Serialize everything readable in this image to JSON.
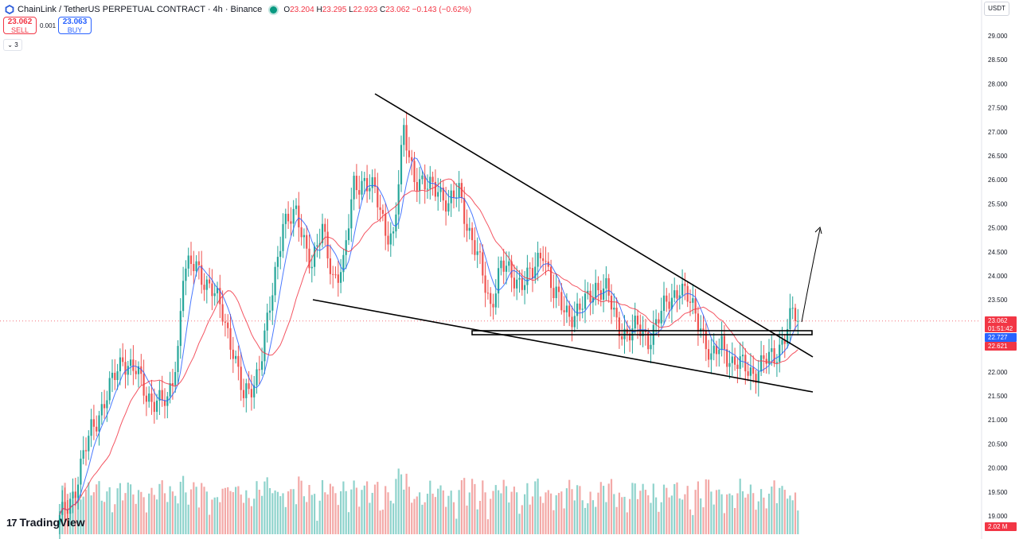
{
  "header": {
    "title": "ChainLink / TetherUS PERPETUAL CONTRACT · 4h · Binance",
    "ohlc": [
      {
        "k": "O",
        "v": "23.204"
      },
      {
        "k": "H",
        "v": "23.295"
      },
      {
        "k": "L",
        "v": "22.923"
      },
      {
        "k": "C",
        "v": "23.062"
      }
    ],
    "change": "−0.143 (−0.62%)"
  },
  "trade": {
    "sell_price": "23.062",
    "sell_label": "SELL",
    "buy_price": "23.063",
    "buy_label": "BUY",
    "spread": "0.001"
  },
  "indicators_count": "3",
  "currency": "USDT",
  "logo_text": "TradingView",
  "colors": {
    "up": "#26a69a",
    "down": "#ef5350",
    "upVol": "#8fd3cc",
    "downVol": "#f3a9a7",
    "ma_fast": "#2962ff",
    "ma_slow": "#f23645"
  },
  "price_labels": {
    "last": "23.062",
    "countdown": "01:51:42",
    "ma_fast": "22.727",
    "ma_slow": "22.621",
    "volume": "2.02 M"
  },
  "chart_data": {
    "type": "candlestick",
    "ylim": [
      18.85,
      29.3
    ],
    "y_ticks": [
      "19.000",
      "19.500",
      "20.000",
      "20.500",
      "21.000",
      "21.500",
      "22.000",
      "22.500",
      "23.000",
      "23.500",
      "24.000",
      "24.500",
      "25.000",
      "25.500",
      "26.000",
      "26.500",
      "27.000",
      "27.500",
      "28.000",
      "28.500",
      "29.000"
    ],
    "close_anchors": [
      [
        0,
        18.9
      ],
      [
        6,
        19.6
      ],
      [
        12,
        20.8
      ],
      [
        18,
        21.5
      ],
      [
        24,
        22.3
      ],
      [
        29,
        22.0
      ],
      [
        33,
        21.5
      ],
      [
        38,
        21.4
      ],
      [
        41,
        21.3
      ],
      [
        45,
        22.5
      ],
      [
        47,
        24.1
      ],
      [
        52,
        24.2
      ],
      [
        58,
        23.7
      ],
      [
        62,
        23.2
      ],
      [
        66,
        22.5
      ],
      [
        70,
        21.4
      ],
      [
        74,
        21.8
      ],
      [
        77,
        22.4
      ],
      [
        81,
        23.6
      ],
      [
        85,
        25.2
      ],
      [
        90,
        25.2
      ],
      [
        96,
        24.3
      ],
      [
        100,
        24.9
      ],
      [
        104,
        24.0
      ],
      [
        108,
        24.2
      ],
      [
        112,
        25.9
      ],
      [
        116,
        26.0
      ],
      [
        120,
        25.7
      ],
      [
        124,
        25.0
      ],
      [
        127,
        24.8
      ],
      [
        131,
        27.0
      ],
      [
        135,
        26.1
      ],
      [
        139,
        25.8
      ],
      [
        144,
        25.9
      ],
      [
        148,
        25.4
      ],
      [
        152,
        25.8
      ],
      [
        156,
        24.9
      ],
      [
        160,
        24.2
      ],
      [
        164,
        23.4
      ],
      [
        168,
        24.2
      ],
      [
        172,
        24.0
      ],
      [
        176,
        23.9
      ],
      [
        180,
        24.0
      ],
      [
        184,
        24.6
      ],
      [
        188,
        23.6
      ],
      [
        192,
        23.3
      ],
      [
        196,
        23.2
      ],
      [
        200,
        23.4
      ],
      [
        204,
        23.8
      ],
      [
        208,
        23.7
      ],
      [
        212,
        23.0
      ],
      [
        216,
        22.8
      ],
      [
        220,
        22.9
      ],
      [
        224,
        22.7
      ],
      [
        228,
        23.1
      ],
      [
        232,
        23.5
      ],
      [
        236,
        23.8
      ],
      [
        240,
        23.4
      ],
      [
        244,
        23.0
      ],
      [
        248,
        22.2
      ],
      [
        252,
        22.6
      ],
      [
        256,
        22.2
      ],
      [
        260,
        22.1
      ],
      [
        264,
        22.0
      ],
      [
        268,
        22.2
      ],
      [
        272,
        22.3
      ],
      [
        276,
        22.8
      ],
      [
        279,
        23.2
      ],
      [
        281,
        23.06
      ]
    ],
    "volume_peak_label": "2.02 M",
    "annotations": [
      "falling wedge trendline (upper)",
      "falling wedge trendline (lower)",
      "horizontal support box",
      "projection arrow"
    ]
  }
}
